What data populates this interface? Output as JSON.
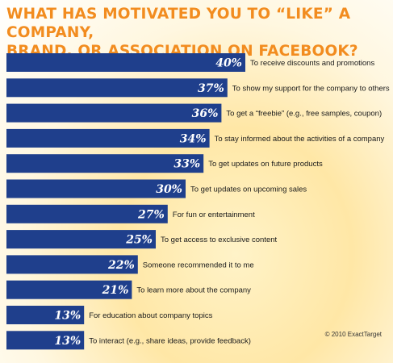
{
  "chart_data": {
    "type": "bar",
    "orientation": "horizontal",
    "title": "WHAT HAS MOTIVATED YOU TO “LIKE” A COMPANY,\nBRAND, OR ASSOCIATION ON FACEBOOK?",
    "categories": [
      "To receive discounts and promotions",
      "To show my support for the company to others",
      "To get a “freebie” (e.g., free samples, coupon)",
      "To stay informed about the  activities of a company",
      "To get updates on future products",
      "To get updates on upcoming sales",
      "For fun or entertainment",
      "To get access to exclusive content",
      "Someone recommended it to me",
      "To learn more about the company",
      "For education about company topics",
      "To interact (e.g., share ideas, provide feedback)"
    ],
    "values": [
      40,
      37,
      36,
      34,
      33,
      30,
      27,
      25,
      22,
      21,
      13,
      13
    ],
    "value_labels": [
      "40%",
      "37%",
      "36%",
      "34%",
      "33%",
      "30%",
      "27%",
      "25%",
      "22%",
      "21%",
      "13%",
      "13%"
    ],
    "bar_color": "#1f3f8c",
    "title_color": "#f28c1f"
  },
  "copyright": "© 2010 ExactTarget"
}
